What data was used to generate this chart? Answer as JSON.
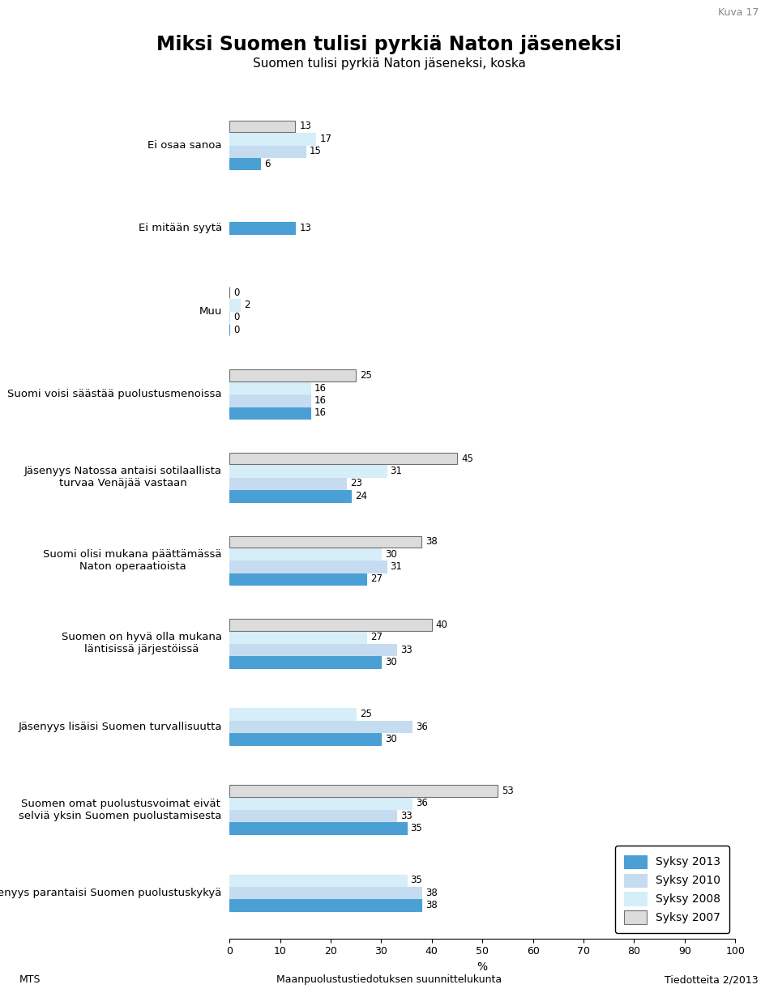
{
  "title": "Miksi Suomen tulisi pyrkiä Naton jäseneksi",
  "subtitle": "Suomen tulisi pyrkiä Naton jäseneksi, koska",
  "kuva": "Kuva 17",
  "footer_left": "MTS",
  "footer_center": "Maanpuolustustiedotuksen suunnittelukunta",
  "footer_right": "Tiedotteita 2/2013",
  "xlabel": "%",
  "xlim": [
    0,
    100
  ],
  "xticks": [
    0,
    10,
    20,
    30,
    40,
    50,
    60,
    70,
    80,
    90,
    100
  ],
  "series_labels": [
    "Syksy 2013",
    "Syksy 2010",
    "Syksy 2008",
    "Syksy 2007"
  ],
  "series_colors": [
    "#4A9FD4",
    "#C5DCF0",
    "#D6EEF8",
    "#DCDCDC"
  ],
  "series_edgecolors": [
    "#4A9FD4",
    "#C5DCF0",
    "#D6EEF8",
    "#707070"
  ],
  "categories": [
    "Jäsenyys parantaisi Suomen puolustuskykyä",
    "Suomen omat puolustusvoimat eivät\nselviä yksin Suomen puolustamisesta",
    "Jäsenyys lisäisi Suomen turvallisuutta",
    "Suomen on hyvä olla mukana\nläntisissä järjestöissä",
    "Suomi olisi mukana päättämässä\nNaton operaatioista",
    "Jäsenyys Natossa antaisi sotilaallista\nturvaa Venäjää vastaan",
    "Suomi voisi säästää puolustusmenoissa",
    "Muu",
    "Ei mitään syytä",
    "Ei osaa sanoa"
  ],
  "values": [
    [
      38,
      38,
      35,
      null
    ],
    [
      35,
      33,
      36,
      53
    ],
    [
      30,
      36,
      25,
      null
    ],
    [
      30,
      33,
      27,
      40
    ],
    [
      27,
      31,
      30,
      38
    ],
    [
      24,
      23,
      31,
      45
    ],
    [
      16,
      16,
      16,
      25
    ],
    [
      0,
      0,
      2,
      0
    ],
    [
      13,
      null,
      null,
      null
    ],
    [
      6,
      15,
      17,
      13
    ]
  ]
}
